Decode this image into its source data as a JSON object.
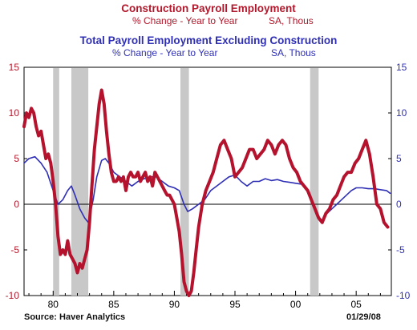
{
  "title1": "Construction Payroll Employment",
  "subtitle1_left": "% Change - Year to Year",
  "subtitle1_right": "SA, Thous",
  "title2": "Total Payroll Employment Excluding Construction",
  "subtitle2_left": "% Change - Year to Year",
  "subtitle2_right": "SA, Thous",
  "source": "Source: Haver Analytics",
  "date": "01/29/08",
  "chart_data": {
    "type": "line",
    "xlim": [
      1977.6,
      2007.9
    ],
    "ylim": [
      -10,
      15
    ],
    "left_ticks": [
      "15",
      "10",
      "5",
      "0",
      "-5",
      "-10"
    ],
    "right_ticks": [
      "15",
      "10",
      "5",
      "0",
      "-5",
      "-10"
    ],
    "x_ticks": [
      {
        "value": 1980,
        "label": "80"
      },
      {
        "value": 1985,
        "label": "85"
      },
      {
        "value": 1990,
        "label": "90"
      },
      {
        "value": 1995,
        "label": "95"
      },
      {
        "value": 2000,
        "label": "00"
      },
      {
        "value": 2005,
        "label": "05"
      }
    ],
    "recessions": [
      [
        1980.0,
        1980.5
      ],
      [
        1981.5,
        1982.9
      ],
      [
        1990.5,
        1991.2
      ],
      [
        2001.2,
        2001.9
      ]
    ],
    "colors": {
      "construction": "#b5122e",
      "total": "#2f2fb6",
      "recession": "#c8c8c8"
    },
    "series": [
      {
        "key": "construction",
        "x": [
          1977.6,
          1977.8,
          1978.0,
          1978.2,
          1978.4,
          1978.6,
          1978.8,
          1979.0,
          1979.2,
          1979.4,
          1979.6,
          1979.8,
          1980.0,
          1980.2,
          1980.4,
          1980.6,
          1980.8,
          1981.0,
          1981.2,
          1981.4,
          1981.6,
          1981.8,
          1982.0,
          1982.2,
          1982.4,
          1982.6,
          1982.8,
          1983.0,
          1983.2,
          1983.4,
          1983.6,
          1983.8,
          1984.0,
          1984.2,
          1984.4,
          1984.6,
          1984.8,
          1985.0,
          1985.2,
          1985.4,
          1985.6,
          1985.8,
          1986.0,
          1986.2,
          1986.4,
          1986.6,
          1986.8,
          1987.0,
          1987.2,
          1987.4,
          1987.6,
          1987.8,
          1988.0,
          1988.2,
          1988.4,
          1988.6,
          1988.8,
          1989.0,
          1989.2,
          1989.4,
          1989.6,
          1989.8,
          1990.0,
          1990.2,
          1990.4,
          1990.6,
          1990.8,
          1991.0,
          1991.2,
          1991.4,
          1991.6,
          1991.8,
          1992.0,
          1992.3,
          1992.6,
          1992.9,
          1993.2,
          1993.5,
          1993.8,
          1994.1,
          1994.4,
          1994.7,
          1995.0,
          1995.3,
          1995.6,
          1995.9,
          1996.2,
          1996.5,
          1996.8,
          1997.1,
          1997.4,
          1997.7,
          1998.0,
          1998.3,
          1998.6,
          1998.9,
          1999.2,
          1999.5,
          1999.8,
          2000.1,
          2000.4,
          2000.7,
          2001.0,
          2001.3,
          2001.6,
          2001.9,
          2002.2,
          2002.5,
          2002.8,
          2003.1,
          2003.4,
          2003.7,
          2004.0,
          2004.3,
          2004.6,
          2004.9,
          2005.2,
          2005.5,
          2005.8,
          2006.1,
          2006.4,
          2006.7,
          2007.0,
          2007.3,
          2007.6
        ],
        "y": [
          8.5,
          10.0,
          9.5,
          10.5,
          10.0,
          8.5,
          7.5,
          8.0,
          6.5,
          5.0,
          5.5,
          4.5,
          2.5,
          0.0,
          -3.5,
          -5.5,
          -5.0,
          -5.5,
          -4.0,
          -5.5,
          -6.0,
          -6.5,
          -7.5,
          -6.5,
          -7.0,
          -6.0,
          -5.0,
          -2.0,
          2.0,
          6.0,
          8.5,
          11.0,
          12.5,
          11.0,
          8.0,
          5.5,
          3.5,
          2.5,
          2.5,
          3.0,
          2.5,
          3.0,
          1.5,
          3.0,
          3.5,
          3.0,
          3.0,
          3.5,
          2.5,
          3.0,
          3.5,
          2.5,
          3.0,
          2.0,
          3.5,
          3.0,
          2.5,
          2.0,
          1.5,
          1.0,
          1.0,
          0.5,
          0.0,
          -1.5,
          -3.0,
          -5.5,
          -8.5,
          -9.5,
          -10.0,
          -9.5,
          -7.5,
          -5.0,
          -2.5,
          0.0,
          1.5,
          2.5,
          3.5,
          5.0,
          6.5,
          7.0,
          6.0,
          5.0,
          3.0,
          3.5,
          4.0,
          5.0,
          6.0,
          6.0,
          5.0,
          5.5,
          6.0,
          7.0,
          6.5,
          5.5,
          6.5,
          7.0,
          6.5,
          5.0,
          4.0,
          3.5,
          2.5,
          2.0,
          1.5,
          0.5,
          -0.5,
          -1.5,
          -2.0,
          -1.0,
          -0.5,
          0.5,
          1.0,
          2.0,
          3.0,
          3.5,
          3.5,
          4.5,
          5.0,
          6.0,
          7.0,
          5.5,
          3.0,
          0.0,
          -0.5,
          -2.0,
          -2.5
        ]
      },
      {
        "key": "total",
        "x": [
          1977.6,
          1978.0,
          1978.5,
          1979.0,
          1979.5,
          1980.0,
          1980.4,
          1980.8,
          1981.2,
          1981.5,
          1981.8,
          1982.2,
          1982.6,
          1982.9,
          1983.3,
          1983.6,
          1984.0,
          1984.3,
          1984.6,
          1985.0,
          1985.5,
          1986.0,
          1986.5,
          1987.0,
          1987.5,
          1988.0,
          1988.5,
          1989.0,
          1989.5,
          1990.0,
          1990.4,
          1990.8,
          1991.1,
          1991.5,
          1992.0,
          1992.5,
          1993.0,
          1993.5,
          1994.0,
          1994.5,
          1995.0,
          1995.5,
          1996.0,
          1996.5,
          1997.0,
          1997.5,
          1998.0,
          1998.5,
          1999.0,
          1999.5,
          2000.0,
          2000.5,
          2001.0,
          2001.4,
          2001.8,
          2002.2,
          2002.6,
          2003.0,
          2003.4,
          2003.8,
          2004.2,
          2004.6,
          2005.0,
          2005.5,
          2006.0,
          2006.5,
          2007.0,
          2007.5,
          2007.8
        ],
        "y": [
          4.5,
          5.0,
          5.2,
          4.5,
          3.5,
          1.5,
          0.0,
          0.5,
          1.5,
          2.0,
          1.0,
          -0.5,
          -1.5,
          -2.0,
          0.5,
          3.0,
          4.8,
          5.0,
          4.5,
          3.5,
          3.0,
          2.5,
          2.0,
          2.5,
          2.8,
          3.0,
          3.0,
          2.5,
          2.0,
          1.8,
          1.5,
          0.0,
          -0.8,
          -0.5,
          0.0,
          0.5,
          1.5,
          2.0,
          2.5,
          3.0,
          3.2,
          2.5,
          2.0,
          2.5,
          2.5,
          2.8,
          2.6,
          2.7,
          2.5,
          2.4,
          2.3,
          2.2,
          1.5,
          0.0,
          -1.2,
          -1.8,
          -1.0,
          -0.5,
          0.0,
          0.5,
          1.0,
          1.5,
          1.8,
          1.8,
          1.7,
          1.7,
          1.6,
          1.5,
          1.2
        ]
      }
    ]
  }
}
